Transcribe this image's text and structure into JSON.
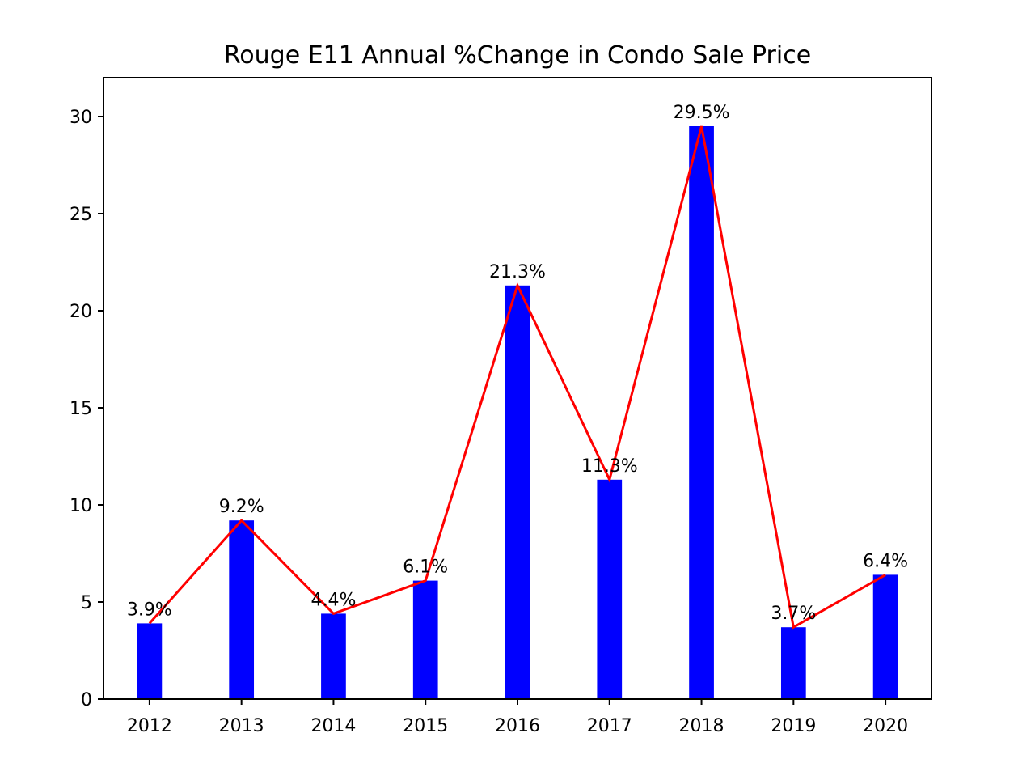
{
  "chart_data": {
    "type": "bar",
    "title": "Rouge E11 Annual %Change in Condo Sale Price",
    "xlabel": "",
    "ylabel": "",
    "categories": [
      "2012",
      "2013",
      "2014",
      "2015",
      "2016",
      "2017",
      "2018",
      "2019",
      "2020"
    ],
    "values": [
      3.9,
      9.2,
      4.4,
      6.1,
      21.3,
      11.3,
      29.5,
      3.7,
      6.4
    ],
    "data_labels": [
      "3.9%",
      "9.2%",
      "4.4%",
      "6.1%",
      "21.3%",
      "11.3%",
      "29.5%",
      "3.7%",
      "6.4%"
    ],
    "overlay_line": true,
    "ylim": [
      0,
      32
    ],
    "yticks": [
      0,
      5,
      10,
      15,
      20,
      25,
      30
    ],
    "grid": false,
    "legend": "none",
    "colors": {
      "bars": "#0000ff",
      "line": "#ff0000",
      "axes": "#000000"
    }
  }
}
